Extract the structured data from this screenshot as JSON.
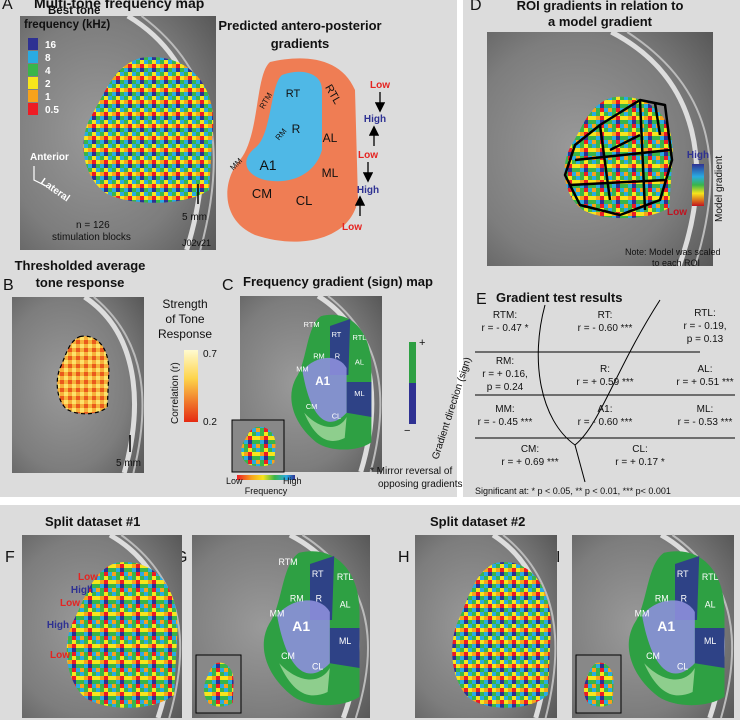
{
  "panel_a": {
    "letter": "A",
    "title": "Multi-tone frequency map",
    "legend_title": [
      "Best tone",
      "frequency (kHz)"
    ],
    "legend": [
      {
        "label": "16",
        "color": "#2e3192"
      },
      {
        "label": "8",
        "color": "#29abe2"
      },
      {
        "label": "4",
        "color": "#39b54a"
      },
      {
        "label": "2",
        "color": "#f7e51c"
      },
      {
        "label": "1",
        "color": "#f7a21b"
      },
      {
        "label": "0.5",
        "color": "#ed1c24"
      }
    ],
    "orientation": [
      "Anterior",
      "Lateral"
    ],
    "scale_bar": "5 mm",
    "note": [
      "n = 126",
      "stimulation blocks"
    ],
    "subject": "J02v21"
  },
  "predicted": {
    "title": [
      "Predicted antero-posterior",
      "gradients"
    ],
    "regions": [
      "RTM",
      "RT",
      "RTL",
      "RM",
      "R",
      "AL",
      "MM",
      "A1",
      "ML",
      "CM",
      "CL"
    ],
    "arrows": [
      "Low",
      "High",
      "Low",
      "High",
      "Low"
    ]
  },
  "panel_b": {
    "letter": "B",
    "title": [
      "Thresholded average",
      "tone response"
    ],
    "legend_title": [
      "Strength",
      "of Tone",
      "Response"
    ],
    "colorbar_label": "Correlation (r)",
    "colorbar_max": "0.7",
    "colorbar_min": "0.2",
    "scale_bar": "5 mm"
  },
  "panel_c": {
    "letter": "C",
    "title": "Frequency gradient (sign) map",
    "regions": [
      "RTM",
      "RT",
      "RM",
      "R",
      "RTL",
      "AL",
      "MM",
      "A1",
      "ML",
      "CM",
      "CL"
    ],
    "frequency_low": "Low",
    "frequency_high": "High",
    "frequency_label": "Frequency",
    "sign_plus": "+",
    "sign_minus": "−",
    "sign_label": "Gradient direction (sign)",
    "footnote": [
      "* Mirror reversal of",
      "opposing gradients"
    ]
  },
  "panel_d": {
    "letter": "D",
    "title": [
      "ROI gradients in relation to",
      "a model gradient"
    ],
    "high": "High",
    "low": "Low",
    "colorbar_label": "Model gradient",
    "note": [
      "Note: Model was scaled",
      "to each ROI"
    ]
  },
  "panel_e": {
    "letter": "E",
    "title": "Gradient test results",
    "cells": [
      [
        "RTM:",
        "r = - 0.47 *"
      ],
      [
        "RT:",
        "r = - 0.60 ***"
      ],
      [
        "RTL:",
        "r = - 0.19,",
        "p = 0.13"
      ],
      [
        "RM:",
        "r = + 0.16,",
        "p = 0.24"
      ],
      [
        "R:",
        "r = + 0.59 ***"
      ],
      [
        "AL:",
        "r = + 0.51 ***"
      ],
      [
        "MM:",
        "r = - 0.45 ***"
      ],
      [
        "A1:",
        "r = - 0.60 ***"
      ],
      [
        "ML:",
        "r = - 0.53 ***"
      ],
      [
        "CM:",
        "r = + 0.69 ***"
      ],
      [
        "CL:",
        "r = + 0.17 *"
      ]
    ],
    "footnote": "Significant at: * p < 0.05, ** p < 0.01, *** p< 0.001"
  },
  "split_1": {
    "title": "Split dataset #1",
    "map": {
      "letter": "F",
      "labels": [
        "Low",
        "High",
        "Low",
        "High",
        "Low"
      ]
    },
    "sign_map": {
      "letter": "G",
      "regions": [
        "RTM",
        "RT",
        "RM",
        "R",
        "RTL",
        "MM",
        "A1",
        "AL",
        "CM",
        "ML",
        "CL"
      ]
    }
  },
  "split_2": {
    "title": "Split dataset #2",
    "map": {
      "letter": "H"
    },
    "sign_map": {
      "letter": "I",
      "regions": [
        "RT",
        "RM",
        "R",
        "RTL",
        "MM",
        "A1",
        "AL",
        "CM",
        "ML",
        "CL"
      ]
    }
  }
}
